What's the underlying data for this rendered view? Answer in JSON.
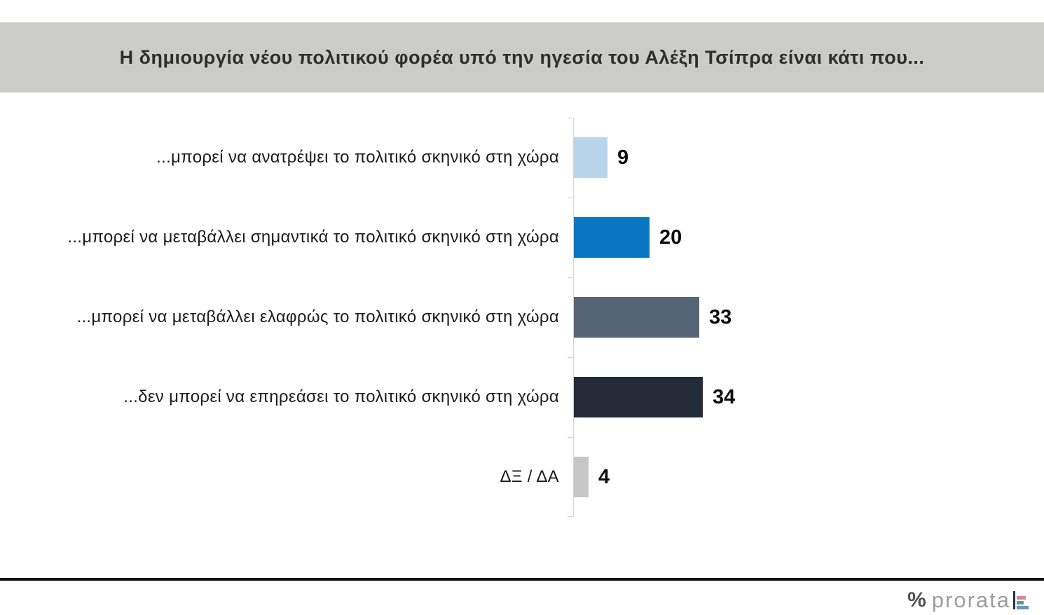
{
  "header": {
    "title": "Η δημιουργία νέου πολιτικού φορέα υπό την ηγεσία του Αλέξη Τσίπρα είναι κάτι που...",
    "background": "#cbcbca"
  },
  "chart_data": {
    "type": "bar",
    "orientation": "horizontal",
    "title": "Η δημιουργία νέου πολιτικού φορέα υπό την ηγεσία του Αλέξη Τσίπρα είναι κάτι που...",
    "categories": [
      "...μπορεί να ανατρέψει το πολιτικό σκηνικό στη χώρα",
      "...μπορεί να μεταβάλλει σημαντικά το πολιτικό σκηνικό στη χώρα",
      "...μπορεί να μεταβάλλει ελαφρώς το πολιτικό σκηνικό στη χώρα",
      "...δεν μπορεί να επηρεάσει το πολιτικό σκηνικό στη χώρα",
      "ΔΞ / ΔΑ"
    ],
    "values": [
      9,
      20,
      33,
      34,
      4
    ],
    "bar_colors": [
      "#b9d5ec",
      "#0a75c2",
      "#566477",
      "#232b38",
      "#c6c6c6"
    ],
    "xlim": [
      0,
      40
    ],
    "grid": false,
    "legend": "none",
    "value_labels_shown": true
  },
  "footer": {
    "logo_percent": "%",
    "logo_text": "prorata",
    "logo_colors": {
      "percent": "#4f4f4f",
      "text": "#9d9d9d",
      "divider": "#22304a",
      "bar_pink": "#d4849e",
      "bar_green": "#57a184",
      "bar_blue": "#6d94c4"
    },
    "logo_bar_widths": [
      13,
      10,
      17
    ]
  }
}
